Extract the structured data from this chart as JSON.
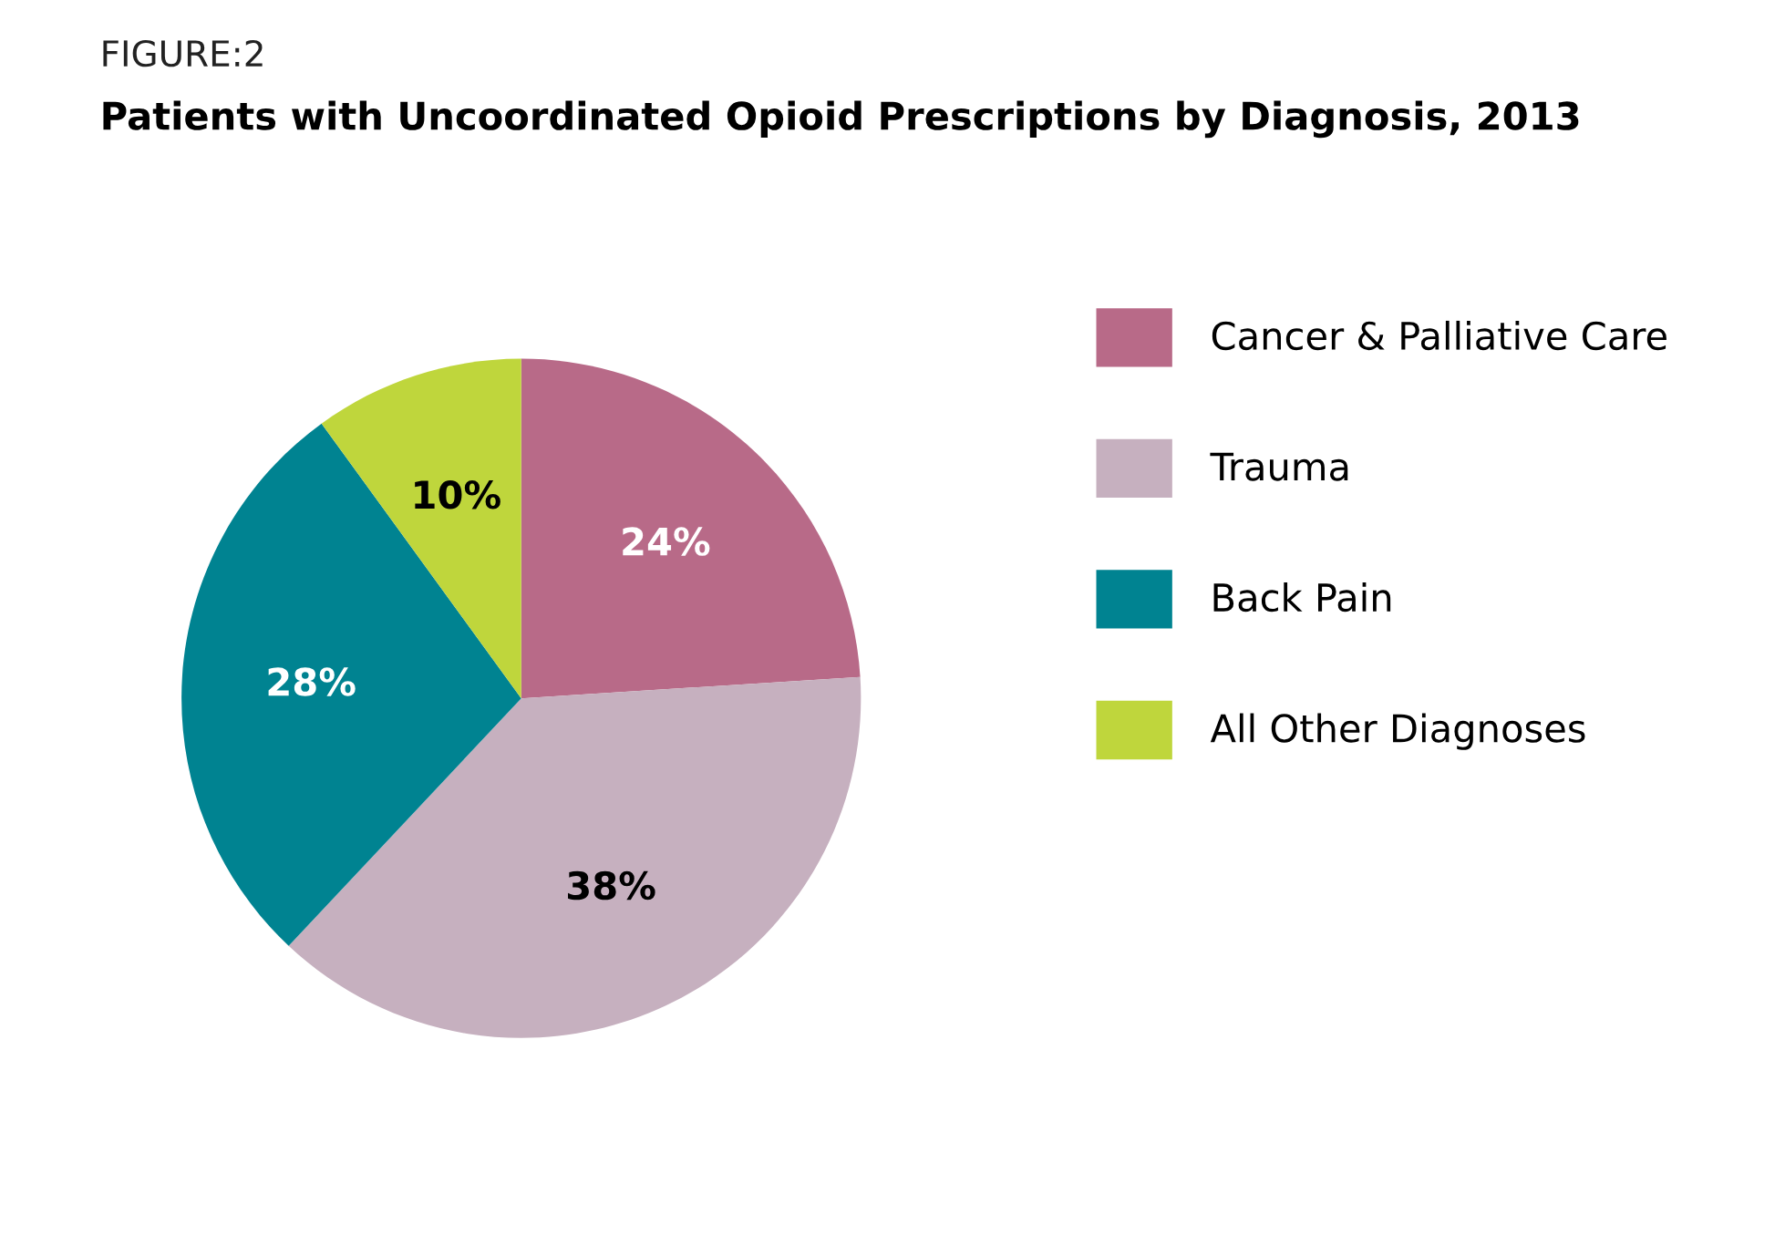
{
  "chart_data": {
    "type": "pie",
    "title": "FIGURE:2",
    "subtitle": "Patients with Uncoordinated Opioid Prescriptions by Diagnosis, 2013",
    "categories": [
      "Cancer & Palliative Care",
      "Trauma",
      "Back Pain",
      "All Other Diagnoses"
    ],
    "values": [
      24,
      38,
      28,
      10
    ],
    "colors": [
      "#b86a88",
      "#c6b0bf",
      "#008391",
      "#bfd63c"
    ],
    "value_labels": [
      "24%",
      "38%",
      "28%",
      "10%"
    ],
    "legend": "right"
  }
}
